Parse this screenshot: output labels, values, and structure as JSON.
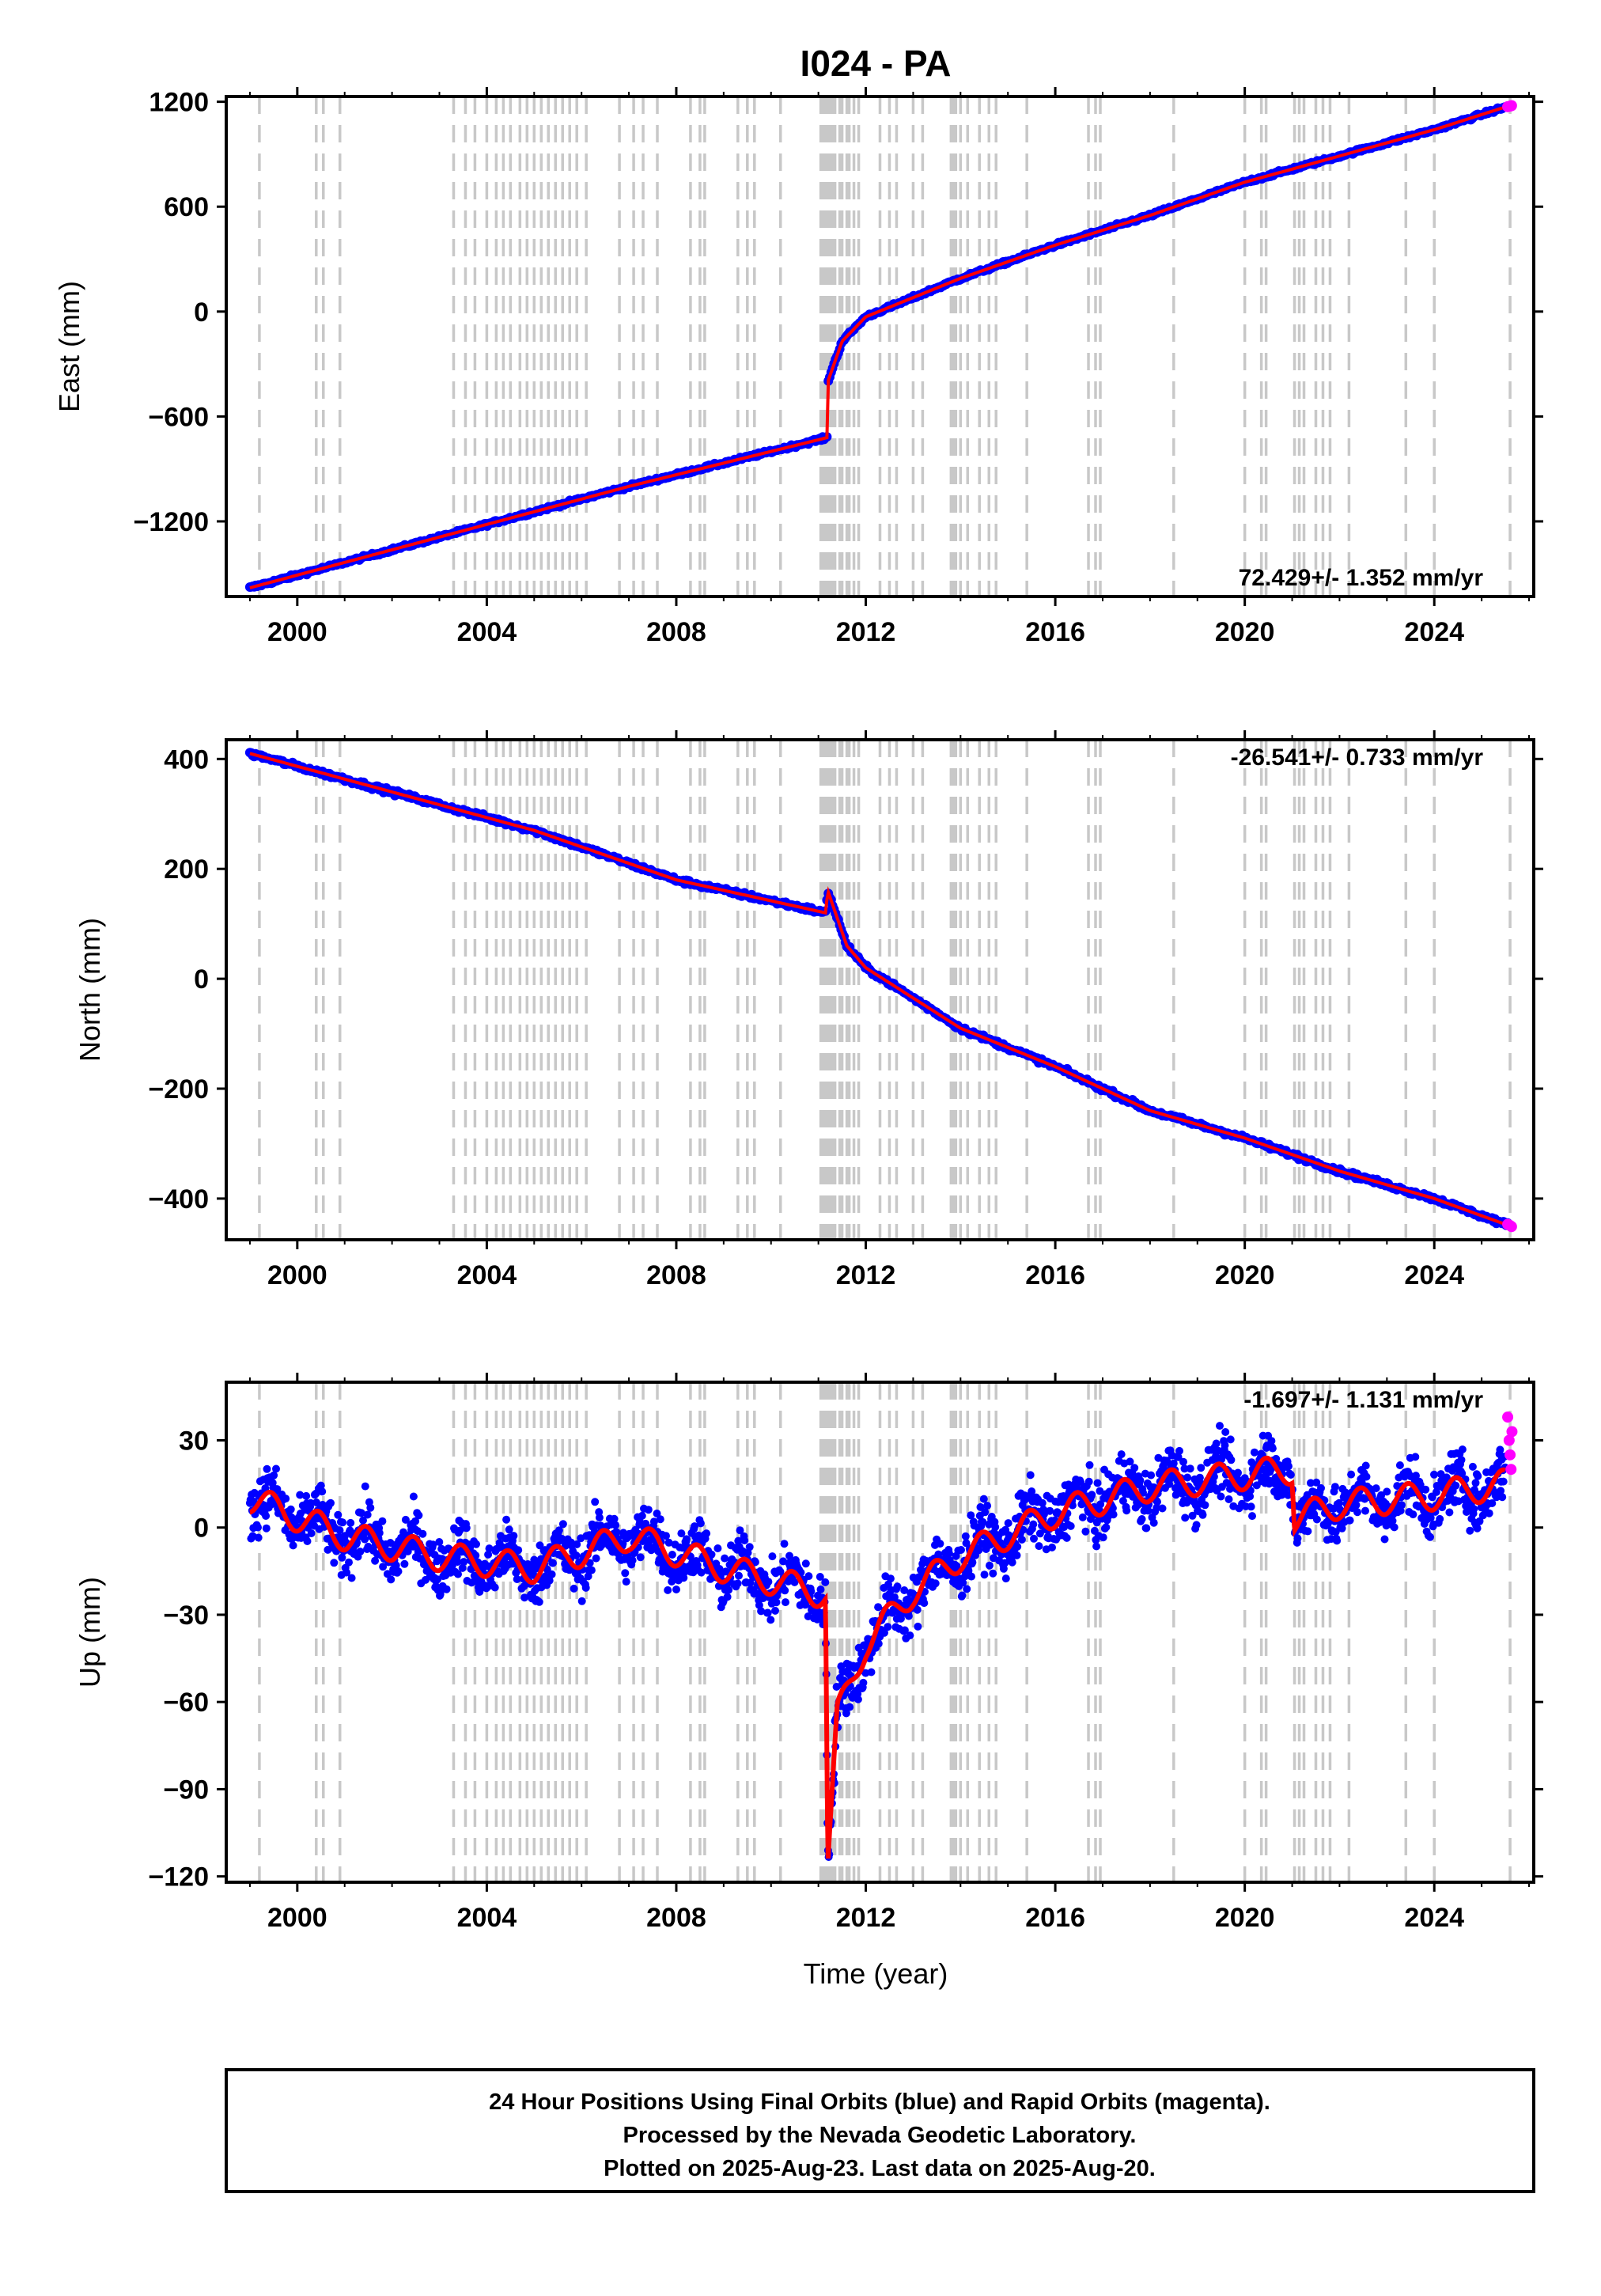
{
  "figure": {
    "title": "I024 - PA",
    "xlabel": "Time (year)",
    "footer": [
      "24 Hour Positions Using Final Orbits (blue) and Rapid Orbits (magenta).",
      "Processed by the Nevada Geodetic Laboratory.",
      "Plotted on 2025-Aug-23. Last data on 2025-Aug-20."
    ]
  },
  "colors": {
    "final": "#0000ff",
    "rapid": "#ff00ff",
    "model": "#ff0000",
    "event_lines": "#c8c8c8"
  },
  "chart_data": [
    {
      "type": "scatter",
      "panel": "east",
      "ylabel": "East (mm)",
      "xlim": [
        1998.5,
        2026.1
      ],
      "ylim": [
        -1630,
        1230
      ],
      "xticks": [
        2000,
        2004,
        2008,
        2012,
        2016,
        2020,
        2024
      ],
      "yticks": [
        -1200,
        -600,
        0,
        600,
        1200
      ],
      "rate_label": "72.429+/- 1.352 mm/yr",
      "rate_position": "bottom-right",
      "series": [
        {
          "role": "final",
          "x": [
            1999.0,
            2003.0,
            2007.0,
            2011.2,
            2011.2,
            2011.5,
            2012.0,
            2014.0,
            2016.0,
            2018.0,
            2020.0,
            2022.0,
            2024.0,
            2025.5
          ],
          "y": [
            -1580,
            -1290,
            -1000,
            -720,
            -400,
            -170,
            -30,
            190,
            380,
            550,
            740,
            890,
            1040,
            1170
          ]
        },
        {
          "role": "rapid",
          "x": [
            2025.55,
            2025.6,
            2025.63
          ],
          "y": [
            1172,
            1175,
            1178
          ]
        }
      ]
    },
    {
      "type": "scatter",
      "panel": "north",
      "ylabel": "North (mm)",
      "xlim": [
        1998.5,
        2026.1
      ],
      "ylim": [
        -475,
        435
      ],
      "xticks": [
        2000,
        2004,
        2008,
        2012,
        2016,
        2020,
        2024
      ],
      "yticks": [
        -400,
        -200,
        0,
        200,
        400
      ],
      "rate_label": "-26.541+/- 0.733 mm/yr",
      "rate_position": "top-right",
      "series": [
        {
          "role": "final",
          "x": [
            1999.0,
            2002.0,
            2005.0,
            2008.0,
            2011.15,
            2011.2,
            2011.6,
            2012.0,
            2014.0,
            2016.0,
            2018.0,
            2020.0,
            2022.0,
            2024.0,
            2025.6
          ],
          "y": [
            410,
            340,
            270,
            180,
            120,
            160,
            60,
            20,
            -90,
            -160,
            -240,
            -290,
            -350,
            -400,
            -450
          ]
        },
        {
          "role": "rapid",
          "x": [
            2025.55,
            2025.6,
            2025.63
          ],
          "y": [
            -447,
            -449,
            -451
          ]
        }
      ]
    },
    {
      "type": "scatter",
      "panel": "up",
      "ylabel": "Up (mm)",
      "xlim": [
        1998.5,
        2026.1
      ],
      "ylim": [
        -122,
        50
      ],
      "xticks": [
        2000,
        2004,
        2008,
        2012,
        2016,
        2020,
        2024
      ],
      "yticks": [
        -120,
        -90,
        -60,
        -30,
        0,
        30
      ],
      "rate_label": "-1.697+/- 1.131 mm/yr",
      "rate_position": "top-right",
      "series": [
        {
          "role": "final",
          "x": [
            1999.0,
            2001.0,
            2003.0,
            2005.0,
            2007.0,
            2009.0,
            2011.15,
            2011.2,
            2011.4,
            2012.0,
            2013.0,
            2014.0,
            2016.0,
            2018.0,
            2020.0,
            2021.0,
            2021.05,
            2022.0,
            2024.0,
            2025.5
          ],
          "y": [
            10,
            -3,
            -10,
            -14,
            -3,
            -14,
            -23,
            -115,
            -65,
            -40,
            -22,
            -10,
            5,
            14,
            18,
            20,
            3,
            8,
            11,
            15
          ]
        },
        {
          "role": "rapid",
          "x": [
            2025.55,
            2025.58,
            2025.6,
            2025.62,
            2025.64
          ],
          "y": [
            38,
            30,
            25,
            20,
            33
          ]
        }
      ]
    }
  ],
  "event_lines": [
    1999.2,
    2000.4,
    2000.55,
    2000.9,
    2003.3,
    2003.55,
    2003.75,
    2004.0,
    2004.2,
    2004.35,
    2004.5,
    2004.7,
    2004.85,
    2005.0,
    2005.15,
    2005.3,
    2005.45,
    2005.6,
    2005.75,
    2005.9,
    2006.1,
    2006.8,
    2007.1,
    2007.3,
    2007.6,
    2008.3,
    2008.5,
    2008.6,
    2009.3,
    2009.5,
    2009.65,
    2010.2,
    2011.05,
    2011.1,
    2011.15,
    2011.2,
    2011.25,
    2011.3,
    2011.35,
    2011.45,
    2011.5,
    2011.6,
    2011.65,
    2011.75,
    2011.85,
    2012.3,
    2012.5,
    2012.65,
    2013.0,
    2013.2,
    2013.8,
    2013.85,
    2013.9,
    2014.0,
    2014.15,
    2014.4,
    2014.6,
    2014.75,
    2015.4,
    2016.7,
    2016.85,
    2016.95,
    2018.5,
    2020.0,
    2020.35,
    2020.45,
    2021.05,
    2021.15,
    2021.25,
    2021.5,
    2021.65,
    2021.8,
    2022.2,
    2023.4,
    2024.0,
    2025.6
  ]
}
